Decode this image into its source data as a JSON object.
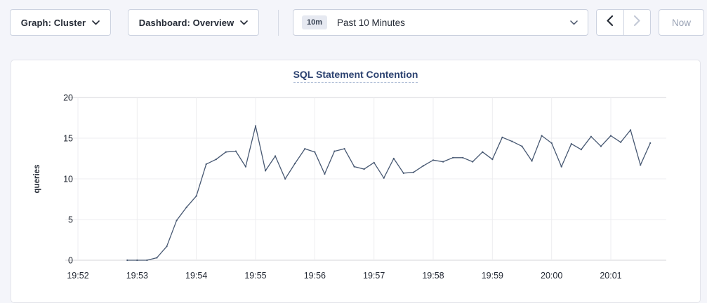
{
  "toolbar": {
    "graph_dropdown_label": "Graph: Cluster",
    "dashboard_dropdown_label": "Dashboard: Overview",
    "time_window_badge": "10m",
    "time_window_label": "Past 10 Minutes",
    "now_button_label": "Now"
  },
  "colors": {
    "page_background": "#f4f5fa",
    "card_background": "#ffffff",
    "line_color": "#475872",
    "grid_color": "#ededf0",
    "axis_edge_color": "#d6d6da",
    "tick_text_color": "#242a35",
    "title_color": "#2c4270",
    "disabled_color": "#c3c9d6",
    "enabled_arrow_color": "#242a35"
  },
  "chart_data": {
    "type": "line",
    "title": "SQL Statement Contention",
    "xlabel": "",
    "ylabel": "queries",
    "ylim": [
      0,
      20
    ],
    "y_ticks": [
      0,
      5,
      10,
      15,
      20
    ],
    "x_ticks": [
      "19:52",
      "19:53",
      "19:54",
      "19:55",
      "19:56",
      "19:57",
      "19:58",
      "19:59",
      "20:00",
      "20:01"
    ],
    "grid": true,
    "legend_position": "none",
    "series": [
      {
        "name": "SQL Statement Contention",
        "start_time": "19:52:50",
        "interval_seconds": 10,
        "values": [
          0,
          0,
          0,
          0.3,
          1.7,
          4.9,
          6.5,
          7.9,
          11.8,
          12.4,
          13.3,
          13.4,
          11.5,
          16.5,
          11.0,
          12.8,
          10.0,
          11.9,
          13.7,
          13.3,
          10.6,
          13.4,
          13.7,
          11.5,
          11.2,
          12.0,
          10.1,
          12.5,
          10.7,
          10.8,
          11.6,
          12.3,
          12.1,
          12.6,
          12.6,
          12.1,
          13.3,
          12.4,
          15.1,
          14.6,
          14.0,
          12.2,
          15.3,
          14.4,
          11.5,
          14.3,
          13.6,
          15.2,
          14.0,
          15.3,
          14.5,
          16.0,
          11.7,
          14.4
        ]
      }
    ]
  }
}
